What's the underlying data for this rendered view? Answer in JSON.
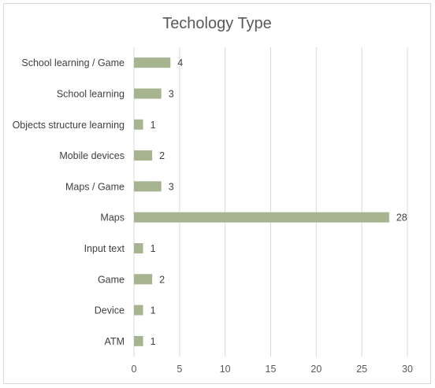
{
  "chart_data": {
    "type": "bar",
    "orientation": "horizontal",
    "title": "Techology Type",
    "xlabel": "",
    "ylabel": "",
    "categories": [
      "School learning / Game",
      "School learning",
      "Objects structure learning",
      "Mobile devices",
      "Maps / Game",
      "Maps",
      "Input text",
      "Game",
      "Device",
      "ATM"
    ],
    "values": [
      4,
      3,
      1,
      2,
      3,
      28,
      1,
      2,
      1,
      1
    ],
    "xlim": [
      0,
      30
    ],
    "xticks": [
      0,
      5,
      10,
      15,
      20,
      25,
      30
    ],
    "grid": true,
    "legend": "none",
    "data_labels": true,
    "bar_color": "#a6b48f",
    "grid_color": "#d9d9d9",
    "text_color": "#404040"
  }
}
